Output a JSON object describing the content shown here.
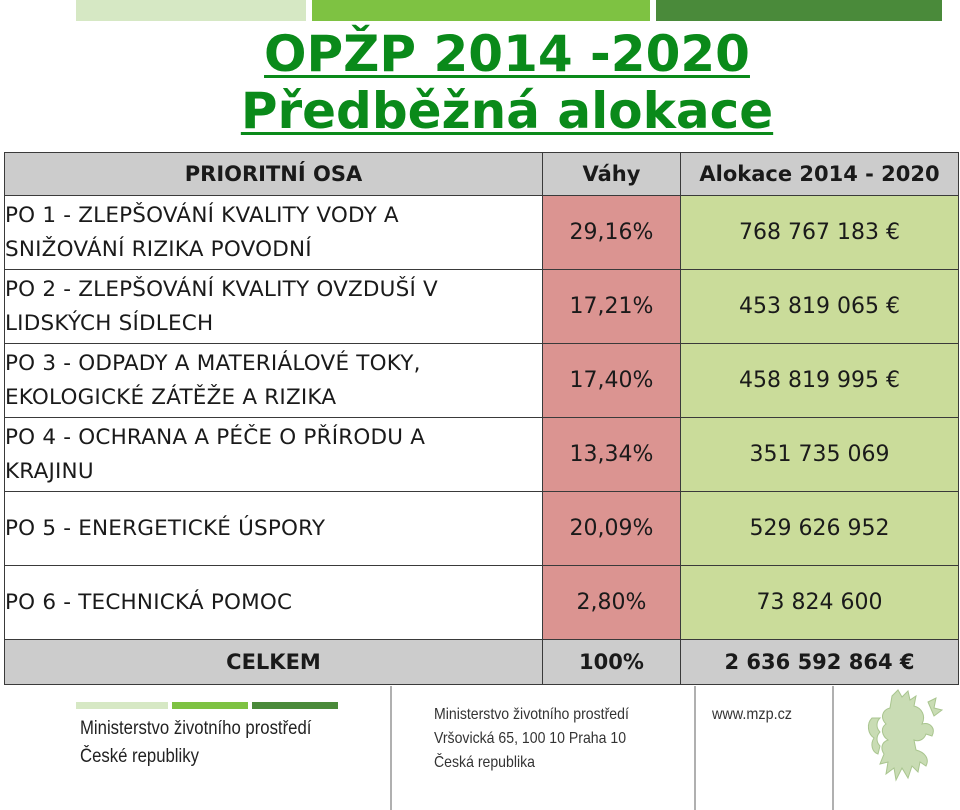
{
  "title": {
    "line1": "OPŽP 2014 -2020",
    "line2": "Předběžná alokace"
  },
  "table": {
    "headers": [
      "PRIORITNÍ OSA",
      "Váhy",
      "Alokace 2014 - 2020"
    ],
    "rows": [
      {
        "line1": "PO 1 - ZLEPŠOVÁNÍ KVALITY VODY A",
        "line2": "SNIŽOVÁNÍ RIZIKA POVODNÍ",
        "weight": "29,16%",
        "allocation": "768 767 183 €"
      },
      {
        "line1": "PO 2 - ZLEPŠOVÁNÍ KVALITY OVZDUŠÍ V",
        "line2": "LIDSKÝCH SÍDLECH",
        "weight": "17,21%",
        "allocation": "453 819 065 €"
      },
      {
        "line1": "PO 3 - ODPADY A MATERIÁLOVÉ TOKY,",
        "line2": "EKOLOGICKÉ ZÁTĚŽE A RIZIKA",
        "weight": "17,40%",
        "allocation": "458 819 995 €"
      },
      {
        "line1": "PO 4 - OCHRANA A PÉČE O PŘÍRODU A",
        "line2": "KRAJINU",
        "weight": "13,34%",
        "allocation": "351 735 069"
      },
      {
        "line1": "PO 5 - ENERGETICKÉ ÚSPORY",
        "line2": "",
        "weight": "20,09%",
        "allocation": "529 626 952"
      },
      {
        "line1": "PO 6 - TECHNICKÁ POMOC",
        "line2": "",
        "weight": "2,80%",
        "allocation": "73 824 600"
      }
    ],
    "total": {
      "label": "CELKEM",
      "weight": "100%",
      "allocation": "2 636 592 864 €"
    }
  },
  "footer": {
    "ministry_line1": "Ministerstvo životního prostředí",
    "ministry_line2": "České republiky",
    "address_line1": "Ministerstvo životního prostředí",
    "address_line2": "Vršovická 65, 100 10  Praha 10",
    "address_line3": "Česká republika",
    "website": "www.mzp.cz",
    "emblem_icon": "czech-lion-emblem-icon"
  },
  "colors": {
    "title_green": "#0a8a1a",
    "weight_cell": "#db9491",
    "allocation_cell": "#cadc9a",
    "header_gray": "#cccccc"
  }
}
